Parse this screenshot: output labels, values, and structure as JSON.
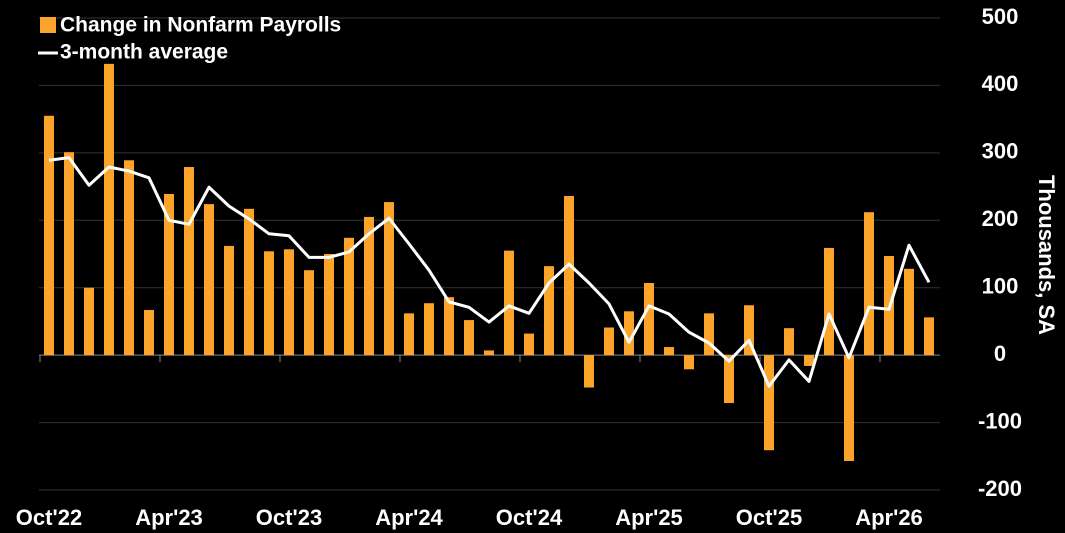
{
  "chart_data": {
    "type": "bar+line",
    "y_axis_label": "Thousands, SA",
    "categories": [
      "Oct'22",
      null,
      null,
      null,
      null,
      null,
      "Apr'23",
      null,
      null,
      null,
      null,
      null,
      "Oct'23",
      null,
      null,
      null,
      null,
      null,
      "Apr'24",
      null,
      null,
      null,
      null,
      null,
      "Oct'24",
      null,
      null,
      null,
      null,
      null,
      "Apr'25",
      null,
      null,
      null,
      null,
      null,
      "Oct'25",
      null,
      null,
      null,
      null,
      null,
      "Apr'26",
      null,
      null
    ],
    "series": [
      {
        "name": "Change in Nonfarm Payrolls",
        "type": "bar",
        "color": "#fca429",
        "values": [
          355,
          301,
          100,
          432,
          289,
          67,
          239,
          279,
          224,
          162,
          217,
          154,
          157,
          126,
          150,
          174,
          205,
          227,
          62,
          77,
          86,
          52,
          7,
          155,
          32,
          132,
          236,
          -48,
          41,
          65,
          107,
          12,
          -21,
          62,
          -71,
          74,
          -141,
          40,
          -16,
          159,
          -157,
          212,
          147,
          128,
          56
        ]
      },
      {
        "name": "3-month average",
        "type": "line",
        "color": "#ffffff",
        "values": [
          289,
          293,
          252,
          279,
          273,
          263,
          200,
          194,
          249,
          221,
          202,
          180,
          177,
          145,
          145,
          153,
          180,
          203,
          165,
          126,
          79,
          71,
          49,
          73,
          62,
          107,
          135,
          107,
          76,
          19,
          73,
          61,
          34,
          18,
          -9,
          22,
          -46,
          -7,
          -39,
          61,
          -4,
          71,
          68,
          163,
          108
        ]
      }
    ],
    "ylim": [
      -200,
      500
    ],
    "yticks": [
      -200,
      -100,
      0,
      100,
      200,
      300,
      400,
      500
    ],
    "grid": true,
    "legend": "top-left"
  }
}
